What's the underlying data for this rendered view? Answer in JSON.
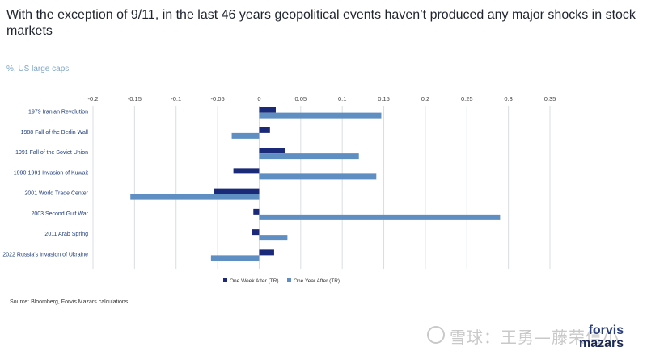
{
  "header": {
    "title": "With the exception of 9/11, in the last 46 years geopolitical events haven’t produced any major shocks in stock markets",
    "subtitle": "%, US large caps"
  },
  "footer": {
    "source": "Source: Bloomberg, Forvis Mazars calculations",
    "watermark": "雪球：王勇—藤荣信小",
    "logo_line1": "forvis",
    "logo_line2": "mazars"
  },
  "colors": {
    "series1": "#1b2a78",
    "series2": "#5f8fc2",
    "grid": "#d9dde3"
  },
  "chart_data": {
    "type": "bar",
    "orientation": "horizontal",
    "categories": [
      "1979 Iranian Revolution",
      "1988 Fall of the Berlin Wall",
      "1991 Fall of the Soviet Union",
      "1990-1991 Invasion of Kuwait",
      "2001 World Trade Center",
      "2003 Second Gulf War",
      "2011 Arab Spring",
      "2022 Russia's Invasion of Ukraine"
    ],
    "series": [
      {
        "name": "One Week After (TR)",
        "values": [
          0.02,
          0.013,
          0.031,
          -0.031,
          -0.054,
          -0.007,
          -0.009,
          0.018
        ]
      },
      {
        "name": "One Year After (TR)",
        "values": [
          0.147,
          -0.033,
          0.12,
          0.141,
          -0.155,
          0.29,
          0.034,
          -0.058
        ]
      }
    ],
    "xlim": [
      -0.2,
      0.35
    ],
    "ticks": [
      -0.2,
      -0.15,
      -0.1,
      -0.05,
      0,
      0.05,
      0.1,
      0.15,
      0.2,
      0.25,
      0.3,
      0.35
    ],
    "tick_labels": [
      "-0.2",
      "-0.15",
      "-0.1",
      "-0.05",
      "0",
      "0.05",
      "0.1",
      "0.15",
      "0.2",
      "0.25",
      "0.3",
      "0.35"
    ],
    "grid": true,
    "legend_position": "bottom"
  }
}
